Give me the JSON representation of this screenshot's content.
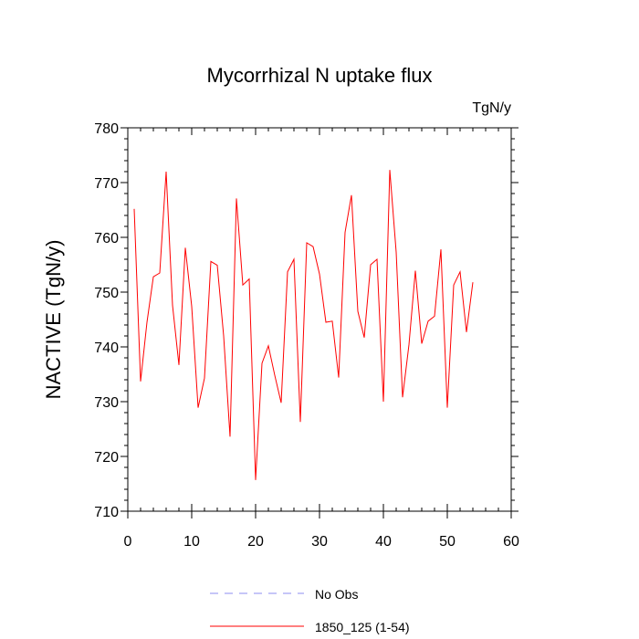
{
  "chart_data": {
    "type": "line",
    "title": "Mycorrhizal N uptake flux",
    "units_label": "TgN/y",
    "ylabel": "NACTIVE  (TgN/y)",
    "xlabel": "",
    "xlim": [
      0,
      60
    ],
    "ylim": [
      710,
      780
    ],
    "x_ticks": [
      0,
      10,
      20,
      30,
      40,
      50,
      60
    ],
    "y_ticks": [
      710,
      720,
      730,
      740,
      750,
      760,
      770,
      780
    ],
    "x_minor_step": 2,
    "y_minor_step": 2,
    "grid": false,
    "legend_position": "bottom-center",
    "series": [
      {
        "name": "No Obs",
        "color": "#8c8cf0",
        "dash": "dashed",
        "x": [],
        "values": []
      },
      {
        "name": "1850_125 (1-54)",
        "color": "#ff0000",
        "dash": "solid",
        "x": [
          1,
          2,
          3,
          4,
          5,
          6,
          7,
          8,
          9,
          10,
          11,
          12,
          13,
          14,
          15,
          16,
          17,
          18,
          19,
          20,
          21,
          22,
          23,
          24,
          25,
          26,
          27,
          28,
          29,
          30,
          31,
          32,
          33,
          34,
          35,
          36,
          37,
          38,
          39,
          40,
          41,
          42,
          43,
          44,
          45,
          46,
          47,
          48,
          49,
          50,
          51,
          52,
          53,
          54
        ],
        "values": [
          765.2,
          733.7,
          744.5,
          752.8,
          753.5,
          772.0,
          747.6,
          736.7,
          758.1,
          747.4,
          728.9,
          734.3,
          755.6,
          754.9,
          742.0,
          723.6,
          767.1,
          751.3,
          752.4,
          715.7,
          737.0,
          740.2,
          734.8,
          729.8,
          753.7,
          756.0,
          726.3,
          759.0,
          758.3,
          753.3,
          744.5,
          744.7,
          734.4,
          760.9,
          767.7,
          746.5,
          741.7,
          755.0,
          756.0,
          730.0,
          772.3,
          757.3,
          730.8,
          740.4,
          753.9,
          740.6,
          744.7,
          745.6,
          757.8,
          728.9,
          751.3,
          753.7,
          742.7,
          751.8
        ]
      }
    ]
  }
}
